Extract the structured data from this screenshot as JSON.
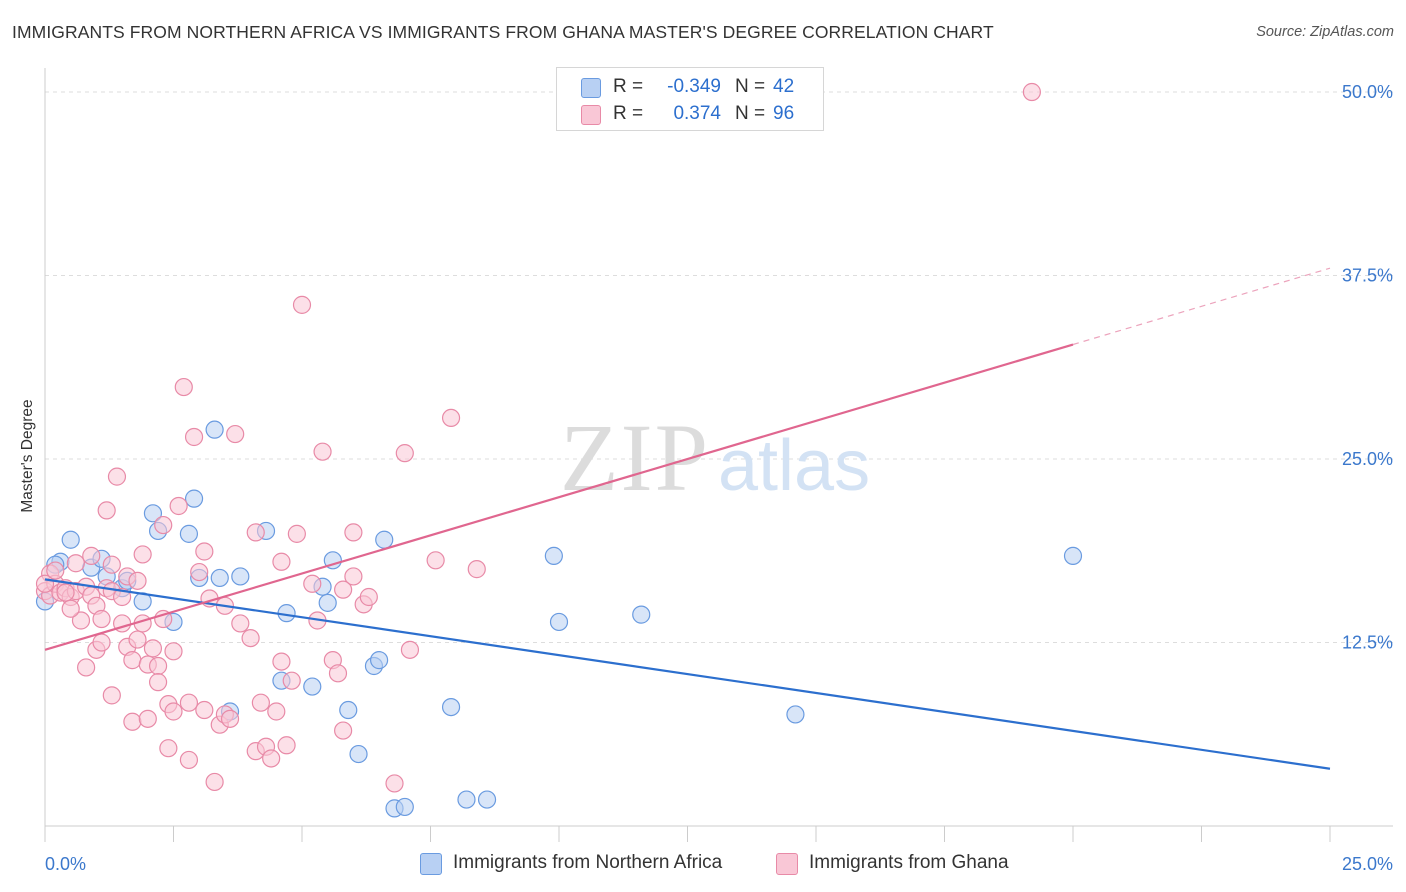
{
  "header": {
    "title": "IMMIGRANTS FROM NORTHERN AFRICA VS IMMIGRANTS FROM GHANA MASTER'S DEGREE CORRELATION CHART",
    "source": "Source: ZipAtlas.com"
  },
  "legend": {
    "series1": {
      "r_label": "R =",
      "r_value": "-0.349",
      "n_label": "N =",
      "n_value": "42"
    },
    "series2": {
      "r_label": "R =",
      "r_value": "0.374",
      "n_label": "N =",
      "n_value": "96"
    }
  },
  "bottom_legend": {
    "series1": "Immigrants from Northern Africa",
    "series2": "Immigrants from Ghana"
  },
  "watermark": {
    "part1": "ZIP",
    "part2": "atlas"
  },
  "colors": {
    "blue_fill": "#b8d0f3",
    "blue_stroke": "#6a9be0",
    "blue_line": "#2c6fce",
    "pink_fill": "#f9c7d6",
    "pink_stroke": "#e88aa7",
    "pink_line": "#e0668f",
    "tick_text": "#3b78cc"
  },
  "chart_data": {
    "type": "scatter",
    "title": "IMMIGRANTS FROM NORTHERN AFRICA VS IMMIGRANTS FROM GHANA MASTER'S DEGREE CORRELATION CHART",
    "xlabel": "",
    "ylabel": "Master's Degree",
    "xlim": [
      0,
      25
    ],
    "ylim": [
      0,
      51.5
    ],
    "x_ticks": [
      0,
      25
    ],
    "x_tick_labels": [
      "0.0%",
      "25.0%"
    ],
    "y_ticks": [
      12.5,
      25,
      37.5,
      50
    ],
    "y_tick_labels": [
      "12.5%",
      "25.0%",
      "37.5%",
      "50.0%"
    ],
    "grid": true,
    "series": [
      {
        "name": "Immigrants from Northern Africa",
        "R": -0.349,
        "N": 42,
        "trend": {
          "x": [
            0,
            25
          ],
          "y": [
            16.8,
            3.9
          ],
          "dashed_from_x": null
        },
        "points": [
          [
            0.0,
            15.3
          ],
          [
            0.3,
            18.0
          ],
          [
            0.5,
            19.5
          ],
          [
            0.9,
            17.6
          ],
          [
            1.1,
            18.2
          ],
          [
            1.2,
            17.0
          ],
          [
            1.5,
            16.2
          ],
          [
            1.6,
            16.7
          ],
          [
            1.9,
            15.3
          ],
          [
            2.1,
            21.3
          ],
          [
            2.2,
            20.1
          ],
          [
            2.5,
            13.9
          ],
          [
            2.8,
            19.9
          ],
          [
            2.9,
            22.3
          ],
          [
            3.0,
            16.9
          ],
          [
            3.3,
            27.0
          ],
          [
            3.4,
            16.9
          ],
          [
            3.6,
            7.8
          ],
          [
            3.8,
            17.0
          ],
          [
            4.3,
            20.1
          ],
          [
            4.6,
            9.9
          ],
          [
            4.7,
            14.5
          ],
          [
            5.2,
            9.5
          ],
          [
            5.4,
            16.3
          ],
          [
            5.5,
            15.2
          ],
          [
            5.6,
            18.1
          ],
          [
            5.9,
            7.9
          ],
          [
            6.1,
            4.9
          ],
          [
            6.4,
            10.9
          ],
          [
            6.5,
            11.3
          ],
          [
            6.6,
            19.5
          ],
          [
            6.8,
            1.2
          ],
          [
            7.0,
            1.3
          ],
          [
            7.9,
            8.1
          ],
          [
            8.2,
            1.8
          ],
          [
            8.6,
            1.8
          ],
          [
            9.9,
            18.4
          ],
          [
            10.0,
            13.9
          ],
          [
            11.6,
            14.4
          ],
          [
            14.6,
            7.6
          ],
          [
            20.0,
            18.4
          ],
          [
            0.2,
            17.8
          ]
        ]
      },
      {
        "name": "Immigrants from Ghana",
        "R": 0.374,
        "N": 96,
        "trend": {
          "x": [
            0,
            25
          ],
          "y": [
            12.0,
            38.0
          ],
          "dashed_from_x": 20.0
        },
        "points": [
          [
            0.0,
            16.0
          ],
          [
            0.1,
            15.7
          ],
          [
            0.1,
            17.2
          ],
          [
            0.2,
            16.5
          ],
          [
            0.3,
            15.9
          ],
          [
            0.4,
            16.2
          ],
          [
            0.5,
            15.6
          ],
          [
            0.6,
            16.0
          ],
          [
            0.7,
            14.0
          ],
          [
            0.8,
            16.3
          ],
          [
            0.8,
            10.8
          ],
          [
            0.9,
            18.4
          ],
          [
            0.9,
            15.7
          ],
          [
            1.0,
            15.0
          ],
          [
            1.0,
            12.0
          ],
          [
            1.1,
            12.5
          ],
          [
            1.1,
            14.1
          ],
          [
            1.2,
            21.5
          ],
          [
            1.2,
            16.2
          ],
          [
            1.3,
            16.0
          ],
          [
            1.3,
            8.9
          ],
          [
            1.3,
            17.8
          ],
          [
            1.4,
            23.8
          ],
          [
            1.5,
            13.8
          ],
          [
            1.5,
            15.6
          ],
          [
            1.6,
            12.2
          ],
          [
            1.6,
            17.0
          ],
          [
            1.7,
            7.1
          ],
          [
            1.7,
            11.3
          ],
          [
            1.8,
            16.7
          ],
          [
            1.8,
            12.7
          ],
          [
            1.9,
            13.8
          ],
          [
            1.9,
            18.5
          ],
          [
            2.0,
            11.0
          ],
          [
            2.0,
            7.3
          ],
          [
            2.1,
            12.1
          ],
          [
            2.2,
            10.9
          ],
          [
            2.2,
            9.8
          ],
          [
            2.3,
            20.5
          ],
          [
            2.3,
            14.1
          ],
          [
            2.4,
            5.3
          ],
          [
            2.4,
            8.3
          ],
          [
            2.5,
            7.8
          ],
          [
            2.5,
            11.9
          ],
          [
            2.6,
            21.8
          ],
          [
            2.7,
            29.9
          ],
          [
            2.8,
            4.5
          ],
          [
            2.8,
            8.4
          ],
          [
            2.9,
            26.5
          ],
          [
            3.0,
            17.3
          ],
          [
            3.1,
            18.7
          ],
          [
            3.1,
            7.9
          ],
          [
            3.2,
            15.5
          ],
          [
            3.3,
            3.0
          ],
          [
            3.4,
            6.9
          ],
          [
            3.5,
            7.6
          ],
          [
            3.5,
            15.0
          ],
          [
            3.6,
            7.3
          ],
          [
            3.7,
            26.7
          ],
          [
            3.8,
            13.8
          ],
          [
            4.0,
            12.8
          ],
          [
            4.1,
            20.0
          ],
          [
            4.1,
            5.1
          ],
          [
            4.2,
            8.4
          ],
          [
            4.3,
            5.4
          ],
          [
            4.4,
            4.6
          ],
          [
            4.5,
            7.8
          ],
          [
            4.6,
            18.0
          ],
          [
            4.6,
            11.2
          ],
          [
            4.7,
            5.5
          ],
          [
            4.8,
            9.9
          ],
          [
            4.9,
            19.9
          ],
          [
            5.0,
            35.5
          ],
          [
            5.2,
            16.5
          ],
          [
            5.3,
            14.0
          ],
          [
            5.4,
            25.5
          ],
          [
            5.6,
            11.3
          ],
          [
            5.7,
            10.4
          ],
          [
            5.8,
            6.5
          ],
          [
            5.8,
            16.1
          ],
          [
            6.0,
            20.0
          ],
          [
            6.0,
            17.0
          ],
          [
            6.2,
            15.1
          ],
          [
            6.3,
            15.6
          ],
          [
            6.8,
            2.9
          ],
          [
            7.0,
            25.4
          ],
          [
            7.1,
            12.0
          ],
          [
            7.6,
            18.1
          ],
          [
            7.9,
            27.8
          ],
          [
            8.4,
            17.5
          ],
          [
            19.2,
            50.0
          ],
          [
            0.0,
            16.5
          ],
          [
            0.2,
            17.4
          ],
          [
            0.4,
            15.9
          ],
          [
            0.6,
            17.9
          ],
          [
            0.5,
            14.8
          ]
        ]
      }
    ]
  }
}
